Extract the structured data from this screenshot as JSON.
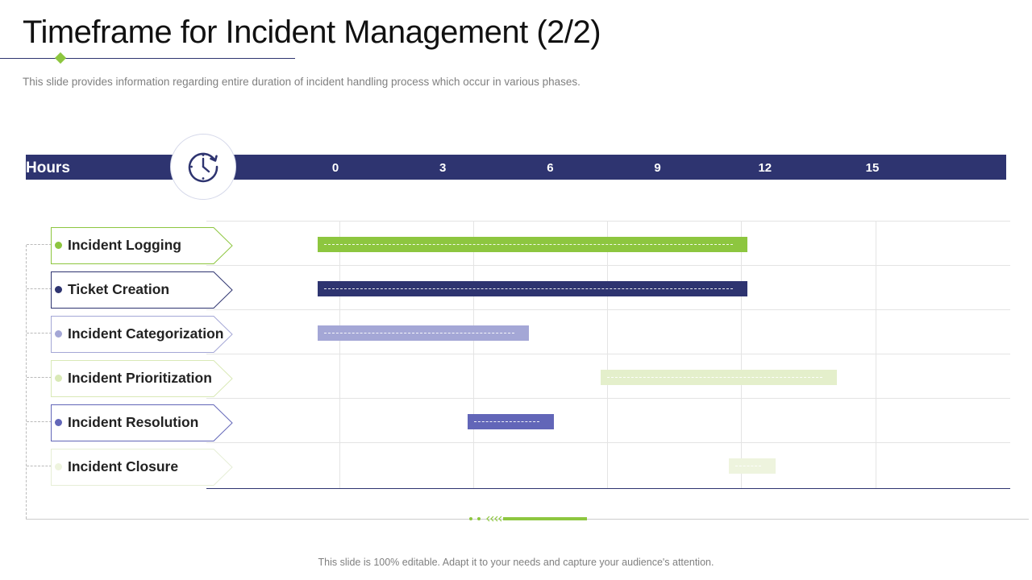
{
  "slide": {
    "title": "Timeframe for Incident Management (2/2)",
    "subtitle": "This slide provides information regarding entire duration of incident handling process which occur in various phases.",
    "footer": "This slide is 100% editable. Adapt it to your needs and capture your audience's attention."
  },
  "colors": {
    "navy": "#2e3470",
    "green": "#8dc63f",
    "lavender": "#a4a7d6",
    "pale_green": "#e4efcb",
    "periwinkle": "#6266b8",
    "paler_green": "#eef4de"
  },
  "chart_data": {
    "type": "gantt",
    "axis_label": "Hours",
    "ticks": [
      "0",
      "3",
      "6",
      "9",
      "12",
      "15"
    ],
    "tick_values": [
      0,
      3,
      6,
      9,
      12,
      15
    ],
    "tasks": [
      {
        "name": "Incident Logging",
        "start": -0.5,
        "end": 11.5,
        "color": "#8dc63f",
        "dot_color": "#8dc63f",
        "border_color": "#8dc63f"
      },
      {
        "name": "Ticket Creation",
        "start": -0.5,
        "end": 11.5,
        "color": "#2e3470",
        "dot_color": "#2e3470",
        "border_color": "#2e3470"
      },
      {
        "name": "Incident Categorization",
        "start": -0.5,
        "end": 5.4,
        "color": "#a4a7d6",
        "dot_color": "#a4a7d6",
        "border_color": "#a4a7d6"
      },
      {
        "name": "Incident Prioritization",
        "start": 7.4,
        "end": 14,
        "color": "#e4efcb",
        "dot_color": "#d9e9b6",
        "border_color": "#d9e9b6"
      },
      {
        "name": "Incident Resolution",
        "start": 3.7,
        "end": 6.1,
        "color": "#6266b8",
        "dot_color": "#6266b8",
        "border_color": "#6266b8"
      },
      {
        "name": "Incident Closure",
        "start": 11,
        "end": 12.3,
        "color": "#eef4de",
        "dot_color": "#eef4de",
        "border_color": "#e6eed6"
      }
    ]
  }
}
